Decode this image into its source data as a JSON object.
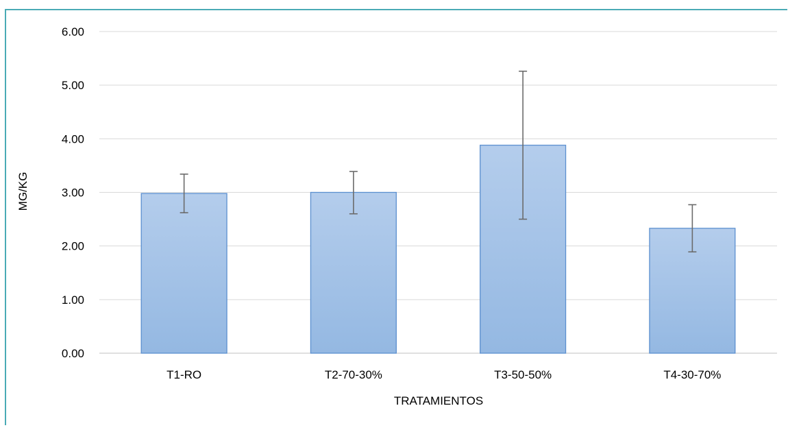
{
  "chart_data": {
    "type": "bar",
    "title": "",
    "xlabel": "TRATAMIENTOS",
    "ylabel": "MG/KG",
    "categories": [
      "T1-RO",
      "T2-70-30%",
      "T3-50-50%",
      "T4-30-70%"
    ],
    "values": [
      2.98,
      3.0,
      3.88,
      2.33
    ],
    "error_bars": [
      {
        "low": 2.62,
        "high": 3.34
      },
      {
        "low": 2.6,
        "high": 3.39
      },
      {
        "low": 2.5,
        "high": 5.26
      },
      {
        "low": 1.89,
        "high": 2.77
      }
    ],
    "ylim": [
      0,
      6
    ],
    "yticks": [
      "0.00",
      "1.00",
      "2.00",
      "3.00",
      "4.00",
      "5.00",
      "6.00"
    ],
    "grid": true,
    "legend": "none",
    "colors": {
      "bar_fill_top": "#b4cdec",
      "bar_fill_bottom": "#94b8e2",
      "bar_stroke": "#5b8fcf",
      "error_bar": "#6b6b6b",
      "gridline": "#d9d9d9",
      "frame_border": "#4aabb5",
      "text": "#000000"
    }
  }
}
